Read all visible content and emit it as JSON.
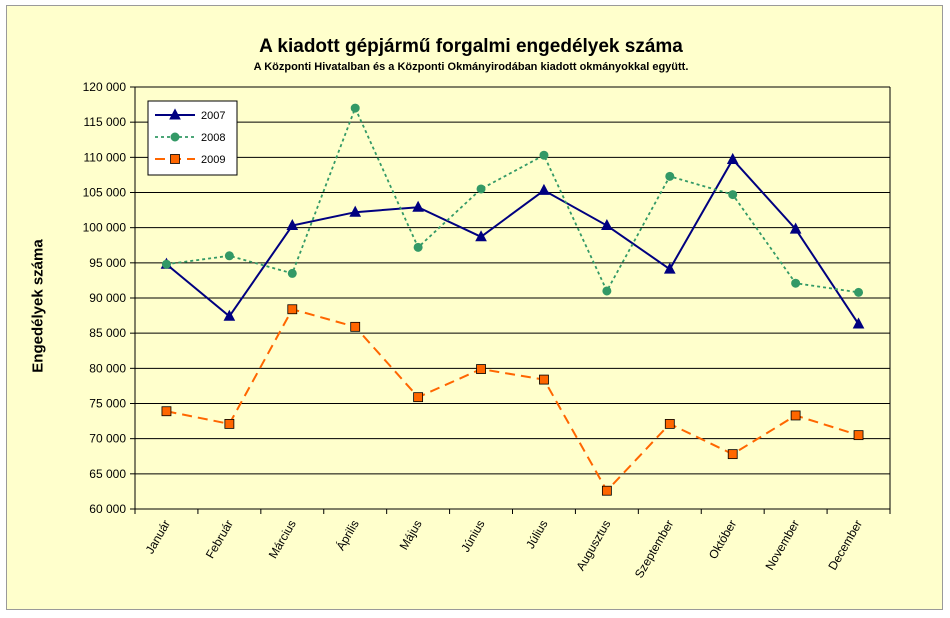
{
  "chart_data": {
    "type": "line",
    "title": "A  kiadott gépjármű forgalmi engedélyek száma",
    "subtitle": "A  Központi Hivatalban és a Központi Okmányirodában kiadott okmányokkal együtt.",
    "ylabel": "Engedélyek száma",
    "xlabel": "",
    "ylim": [
      60000,
      120000
    ],
    "ytick_step": 5000,
    "yticks": [
      "60 000",
      "65 000",
      "70 000",
      "75 000",
      "80 000",
      "85 000",
      "90 000",
      "95 000",
      "100 000",
      "105 000",
      "110 000",
      "115 000",
      "120 000"
    ],
    "categories": [
      "Január",
      "Február",
      "Március",
      "Április",
      "Május",
      "Június",
      "Július",
      "Augusztus",
      "Szeptember",
      "Október",
      "November",
      "December"
    ],
    "grid": true,
    "legend_position": "top-left",
    "series": [
      {
        "name": "2007",
        "color": "#000080",
        "marker": "triangle",
        "dash": "solid",
        "values": [
          94800,
          87400,
          100300,
          102200,
          102900,
          98700,
          105300,
          100300,
          94100,
          109700,
          99800,
          86300
        ]
      },
      {
        "name": "2008",
        "color": "#339966",
        "marker": "circle",
        "dash": "dotted",
        "values": [
          94800,
          96000,
          93500,
          117000,
          97200,
          105500,
          110300,
          91000,
          107300,
          104700,
          92100,
          90800
        ]
      },
      {
        "name": "2009",
        "color": "#ff6600",
        "marker": "square",
        "dash": "dashed",
        "values": [
          73900,
          72100,
          88400,
          85900,
          75900,
          79900,
          78400,
          62600,
          72100,
          67800,
          73300,
          70500
        ]
      }
    ]
  }
}
